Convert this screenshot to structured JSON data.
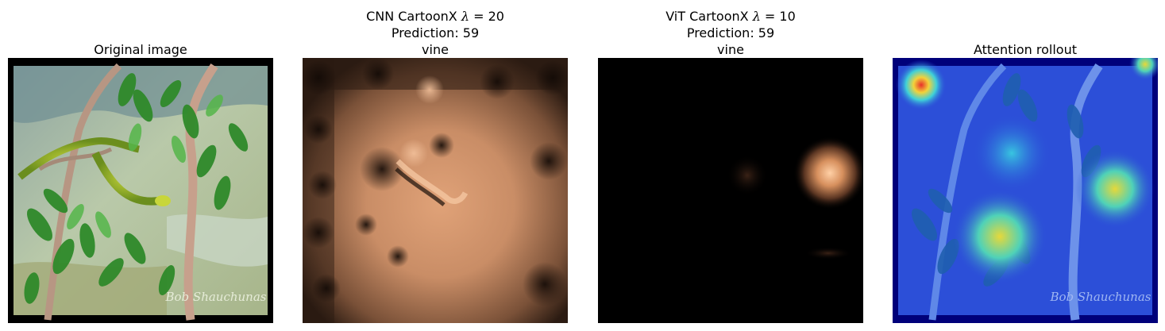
{
  "panels": [
    {
      "title_lines": [
        "Original image"
      ],
      "watermark": "Bob Shauchunas"
    },
    {
      "title_prefix": "CNN CartoonX",
      "lambda_value": "20",
      "prediction": "Prediction: 59",
      "label": "vine"
    },
    {
      "title_prefix": "ViT CartoonX",
      "lambda_value": "10",
      "prediction": "Prediction: 59",
      "label": "vine"
    },
    {
      "title_lines": [
        "Attention rollout"
      ],
      "watermark": "Bob Shauchunas"
    }
  ],
  "colors": {
    "cartoonx_colormap": "copper",
    "rollout_colormap": "jet"
  }
}
